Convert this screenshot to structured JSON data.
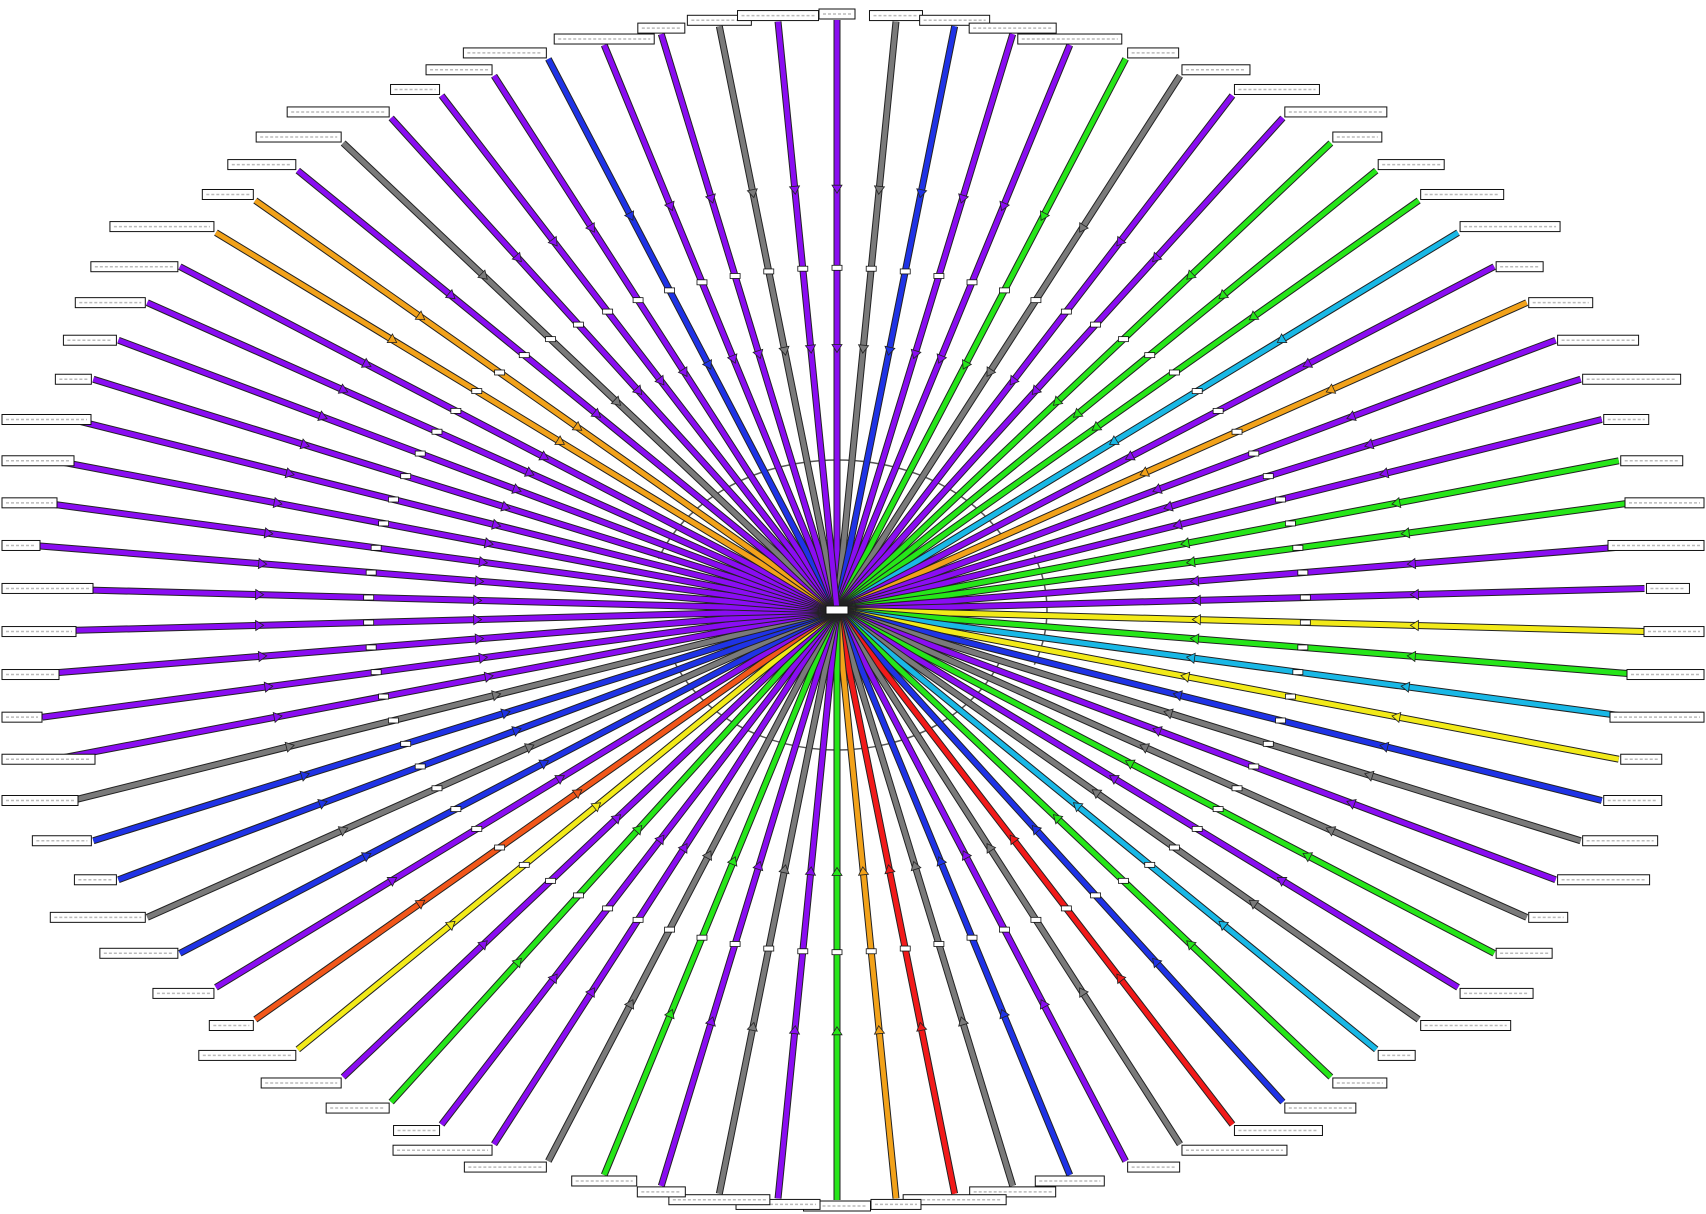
{
  "diagram": {
    "type": "radial-graph",
    "hub": {
      "label": ""
    },
    "palette": {
      "purple": "#8A0DF2",
      "grey": "#7A7A7A",
      "blue": "#1F33E6",
      "cyan": "#19B8E6",
      "green": "#26E619",
      "yellow": "#F2EA19",
      "orange": "#F2A21A",
      "red-orange": "#F2571A",
      "red": "#F21A1A",
      "arrow-outline": "#222222",
      "inner-arc": "#555555"
    },
    "edge_colors": [
      "purple",
      "grey",
      "blue",
      "purple",
      "purple",
      "green",
      "grey",
      "purple",
      "purple",
      "green",
      "green",
      "green",
      "cyan",
      "purple",
      "orange",
      "purple",
      "purple",
      "purple",
      "green",
      "green",
      "purple",
      "purple",
      "yellow",
      "green",
      "cyan",
      "yellow",
      "blue",
      "grey",
      "purple",
      "grey",
      "green",
      "purple",
      "grey",
      "cyan",
      "green",
      "blue",
      "red",
      "grey",
      "purple",
      "blue",
      "grey",
      "red",
      "orange",
      "green",
      "purple",
      "grey",
      "purple",
      "green",
      "grey",
      "purple",
      "purple",
      "green",
      "purple",
      "yellow",
      "red-orange",
      "purple",
      "blue",
      "grey",
      "blue",
      "blue",
      "grey",
      "purple",
      "purple",
      "purple",
      "purple",
      "purple",
      "purple",
      "purple",
      "purple",
      "purple",
      "purple",
      "purple",
      "purple",
      "purple",
      "orange",
      "orange",
      "purple",
      "grey",
      "purple",
      "purple",
      "purple",
      "blue",
      "purple",
      "purple",
      "grey",
      "purple"
    ]
  }
}
